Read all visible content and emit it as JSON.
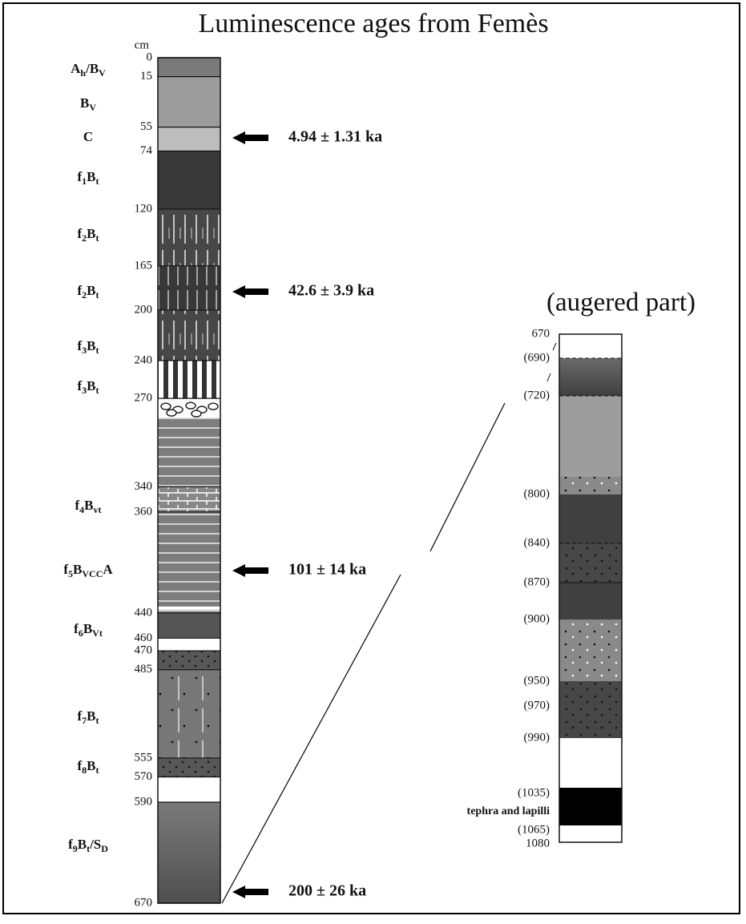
{
  "title": "Luminescence ages from Femès",
  "main_profile": {
    "unit": "cm",
    "depths": [
      0,
      15,
      55,
      74,
      120,
      165,
      200,
      240,
      270,
      340,
      360,
      440,
      460,
      470,
      485,
      555,
      570,
      590,
      670
    ],
    "horizons": [
      {
        "parts": [
          "A",
          "h",
          "/B",
          "V"
        ]
      },
      {
        "parts": [
          "B",
          "V"
        ]
      },
      {
        "parts": [
          "C"
        ]
      },
      {
        "parts": [
          "f",
          "1",
          "B",
          "t"
        ]
      },
      {
        "parts": [
          "f",
          "2",
          "B",
          "t"
        ]
      },
      {
        "parts": [
          "f",
          "2",
          "B",
          "t"
        ]
      },
      {
        "parts": [
          "f",
          "3",
          "B",
          "t"
        ]
      },
      {
        "parts": [
          "f",
          "3",
          "B",
          "t"
        ]
      },
      {
        "parts": [
          "f",
          "4",
          "B",
          "vt"
        ]
      },
      {
        "parts": [
          "f",
          "5",
          "B",
          "VCC",
          "A"
        ]
      },
      {
        "parts": [
          "f",
          "6",
          "B",
          "Vt"
        ]
      },
      {
        "parts": [
          "f",
          "7",
          "B",
          "t"
        ]
      },
      {
        "parts": [
          "f",
          "8",
          "B",
          "t"
        ]
      },
      {
        "parts": [
          "f",
          "9",
          "B",
          "t",
          "/S",
          "D"
        ]
      }
    ],
    "ages": [
      "4.94 ± 1.31 ka",
      "42.6 ± 3.9 ka",
      "101 ± 14 ka",
      "200 ± 26 ka"
    ]
  },
  "augered_part": {
    "title": "(augered part)",
    "depths": [
      "670",
      "(690)",
      "(720)",
      "(800)",
      "(840)",
      "(870)",
      "(900)",
      "(950)",
      "(970)",
      "(990)",
      "(1035)",
      "(1065)",
      "1080"
    ],
    "note": "tephra and lapilli"
  }
}
